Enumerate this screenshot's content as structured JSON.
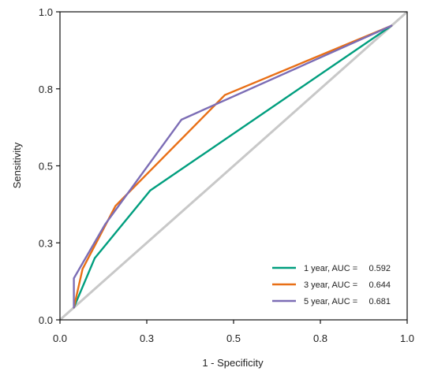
{
  "chart_data": {
    "type": "line",
    "title": "",
    "xlabel": "1 - Specificity",
    "ylabel": "Sensitivity",
    "xlim": [
      0,
      1
    ],
    "ylim": [
      0,
      1
    ],
    "x_ticks": [
      0.0,
      0.25,
      0.5,
      0.75,
      1.0
    ],
    "x_tick_labels": [
      "0.0",
      "0.3",
      "0.5",
      "0.8",
      "1.0"
    ],
    "y_ticks": [
      0.0,
      0.25,
      0.5,
      0.75,
      1.0
    ],
    "y_tick_labels": [
      "0.0",
      "0.3",
      "0.5",
      "0.8",
      "1.0"
    ],
    "grid": false,
    "legend_position": "bottom-right",
    "reference_line": {
      "x": [
        0,
        1
      ],
      "y": [
        0,
        1
      ],
      "color": "#c8c8c8"
    },
    "series": [
      {
        "name": "1 year, AUC =",
        "auc": "0.592",
        "color": "#009e7e",
        "x": [
          0.04,
          0.1,
          0.26,
          0.955
        ],
        "y": [
          0.04,
          0.2,
          0.42,
          0.955
        ]
      },
      {
        "name": "3 year, AUC =",
        "auc": "0.644",
        "color": "#e86f16",
        "x": [
          0.04,
          0.065,
          0.16,
          0.475,
          0.955
        ],
        "y": [
          0.04,
          0.165,
          0.37,
          0.73,
          0.955
        ]
      },
      {
        "name": "5 year, AUC =",
        "auc": "0.681",
        "color": "#7c6db5",
        "x": [
          0.04,
          0.04,
          0.13,
          0.35,
          0.955
        ],
        "y": [
          0.04,
          0.135,
          0.31,
          0.65,
          0.955
        ]
      }
    ]
  }
}
